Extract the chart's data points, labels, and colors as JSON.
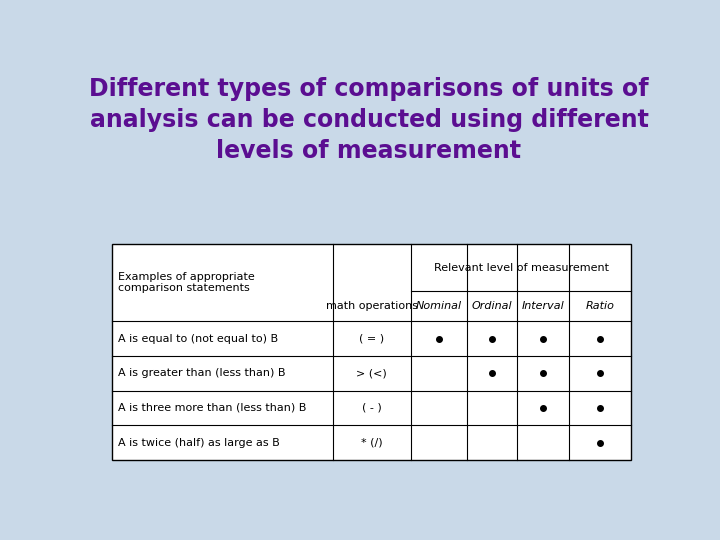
{
  "title_line1": "Different types of comparisons of units of",
  "title_line2": "analysis can be conducted using different",
  "title_line3": "levels of measurement",
  "title_color": "#5B0E91",
  "bg_color": "#C9D9E8",
  "table_bg": "#FFFFFF",
  "header1": "Examples of appropriate\ncomparison statements",
  "header2": "math operations",
  "header3": "Relevant level of measurement",
  "col_headers": [
    "Nominal",
    "Ordinal",
    "Interval",
    "Ratio"
  ],
  "rows": [
    {
      "statement": "A is equal to (not equal to) B",
      "operation": "( = )",
      "dots": [
        true,
        true,
        true,
        true
      ]
    },
    {
      "statement": "A is greater than (less than) B",
      "operation": "> (<)",
      "dots": [
        false,
        true,
        true,
        true
      ]
    },
    {
      "statement": "A is three more than (less than) B",
      "operation": "( - )",
      "dots": [
        false,
        false,
        true,
        true
      ]
    },
    {
      "statement": "A is twice (half) as large as B",
      "operation": "* (/)",
      "dots": [
        false,
        false,
        false,
        true
      ]
    }
  ],
  "dot_color": "#000000",
  "grid_color": "#000000",
  "font_size_title": 17,
  "font_size_table": 8,
  "font_size_header": 8
}
